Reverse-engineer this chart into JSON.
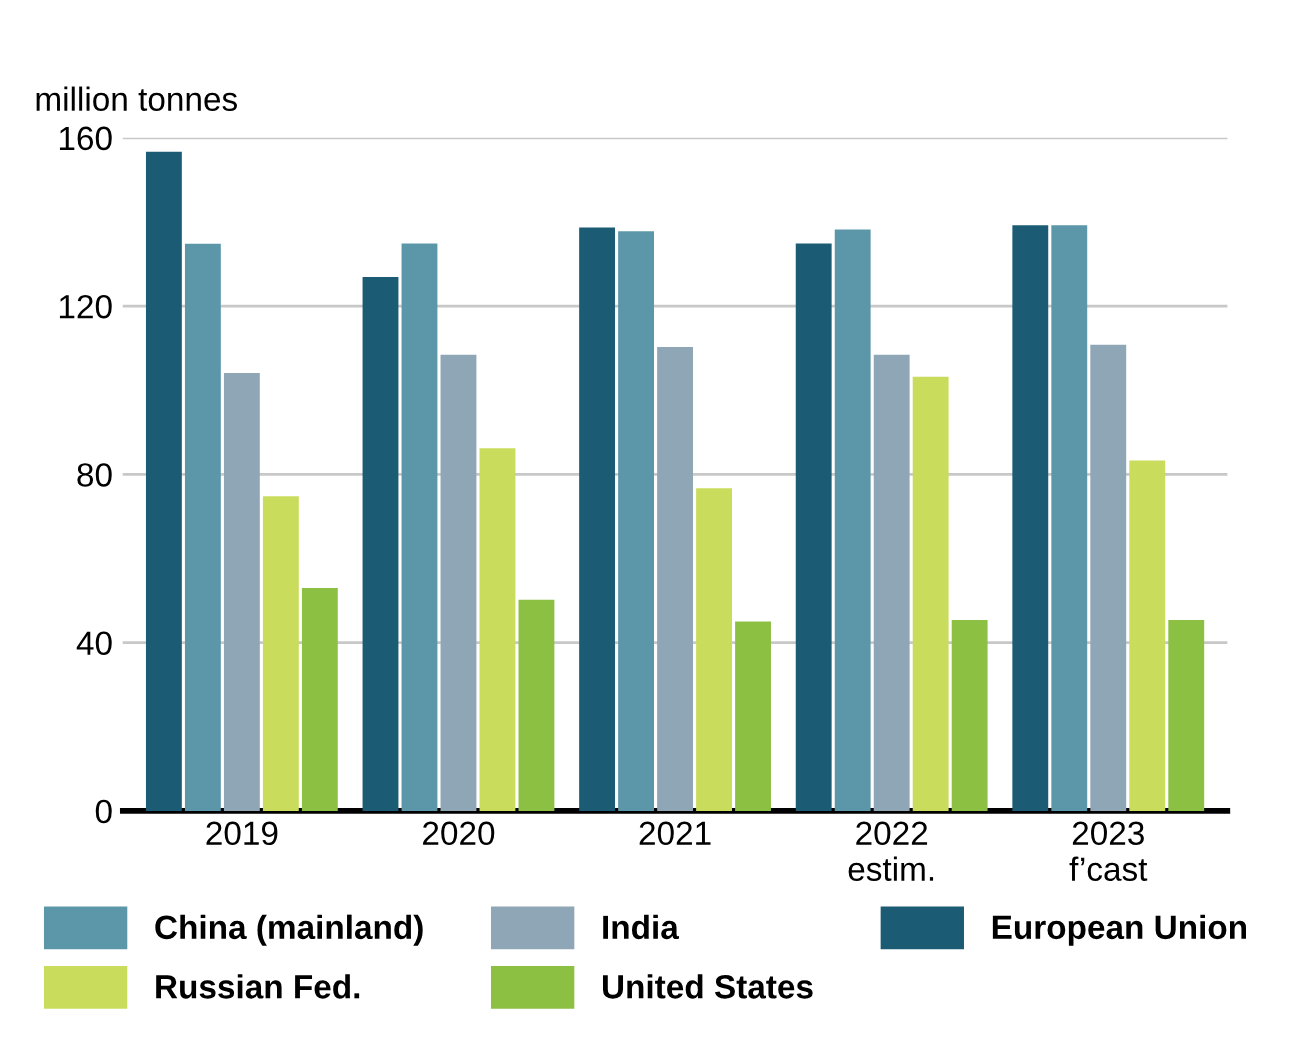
{
  "chart_data": {
    "type": "bar",
    "ylabel": "million tonnes",
    "categories": [
      "2019",
      "2020",
      "2021",
      "2022\nestim.",
      "2023\nf’cast"
    ],
    "series": [
      {
        "name": "European Union",
        "color": "#1b5b74",
        "values": [
          156.7,
          126.9,
          138.7,
          134.9,
          139.2
        ]
      },
      {
        "name": "China (mainland)",
        "color": "#5b97a9",
        "values": [
          134.8,
          134.9,
          137.8,
          138.2,
          139.2
        ]
      },
      {
        "name": "India",
        "color": "#8ea6b5",
        "values": [
          104.1,
          108.4,
          110.3,
          108.4,
          110.8
        ]
      },
      {
        "name": "Russian Fed.",
        "color": "#c9dc5c",
        "values": [
          74.8,
          86.2,
          76.7,
          103.2,
          83.3
        ]
      },
      {
        "name": "United States",
        "color": "#8bc043",
        "values": [
          53.0,
          50.2,
          45.0,
          45.4,
          45.4
        ]
      }
    ],
    "ylim": [
      0,
      160
    ],
    "yticks": [
      0,
      40,
      80,
      120,
      160
    ],
    "grid": "y",
    "legend": "bottom"
  }
}
